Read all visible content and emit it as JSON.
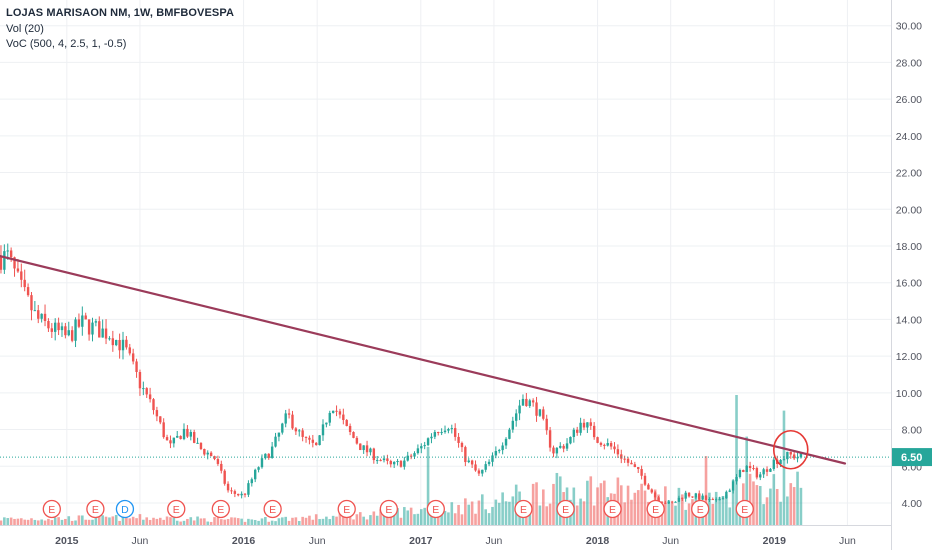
{
  "legend": {
    "symbol_line": "LOJAS MARISAON NM, 1W, BMFBOVESPA",
    "volume_line": "Vol (20)",
    "voc_line": "VoC (500, 4, 2.5, 1, -0.5)"
  },
  "colors": {
    "up": "#26a69a",
    "down": "#ef5350",
    "trendline": "#9b3b5a",
    "price_line": "#26a69a",
    "marker_earnings": "#ef5350",
    "marker_dividend": "#2196f3",
    "grid": "#eef0f3"
  },
  "last_price_label": "6.50",
  "chart_data": {
    "type": "candlestick",
    "title": "LOJAS MARISAON NM, 1W, BMFBOVESPA",
    "interval": "1W",
    "indicators": [
      "Vol (20)",
      "VoC (500, 4, 2.5, 1, -0.5)"
    ],
    "x_ticks": [
      "2015",
      "Jun",
      "2016",
      "Jun",
      "2017",
      "Jun",
      "2018",
      "Jun",
      "2019",
      "Jun"
    ],
    "y_ticks": [
      "4.00",
      "6.00",
      "8.00",
      "10.00",
      "12.00",
      "14.00",
      "16.00",
      "18.00",
      "20.00",
      "22.00",
      "24.00",
      "26.00",
      "28.00",
      "30.00"
    ],
    "ylim": [
      2.8,
      31.4
    ],
    "xlim": [
      "2014-08-16",
      "2019-08-30"
    ],
    "grid": true,
    "last_price": 6.5,
    "price_path": [
      [
        "2014-09-01",
        17.4
      ],
      [
        "2014-10-01",
        15.5
      ],
      [
        "2014-11-01",
        14.0
      ],
      [
        "2014-12-01",
        13.5
      ],
      [
        "2015-01-01",
        13.0
      ],
      [
        "2015-02-01",
        13.8
      ],
      [
        "2015-03-01",
        13.5
      ],
      [
        "2015-04-01",
        13.2
      ],
      [
        "2015-05-01",
        12.4
      ],
      [
        "2015-06-01",
        10.5
      ],
      [
        "2015-07-01",
        9.0
      ],
      [
        "2015-08-01",
        7.0
      ],
      [
        "2015-09-01",
        8.0
      ],
      [
        "2015-10-01",
        7.0
      ],
      [
        "2015-11-01",
        6.5
      ],
      [
        "2015-12-01",
        4.6
      ],
      [
        "2016-01-01",
        4.4
      ],
      [
        "2016-02-01",
        6.0
      ],
      [
        "2016-03-01",
        7.0
      ],
      [
        "2016-04-01",
        8.8
      ],
      [
        "2016-05-01",
        7.5
      ],
      [
        "2016-06-01",
        7.0
      ],
      [
        "2016-07-01",
        9.5
      ],
      [
        "2016-08-01",
        8.0
      ],
      [
        "2016-09-01",
        7.0
      ],
      [
        "2016-10-01",
        6.5
      ],
      [
        "2016-11-01",
        6.0
      ],
      [
        "2016-12-01",
        6.3
      ],
      [
        "2017-01-01",
        7.0
      ],
      [
        "2017-02-01",
        8.0
      ],
      [
        "2017-03-01",
        8.3
      ],
      [
        "2017-04-01",
        6.5
      ],
      [
        "2017-05-01",
        5.5
      ],
      [
        "2017-06-01",
        6.5
      ],
      [
        "2017-07-01",
        8.0
      ],
      [
        "2017-08-01",
        9.8
      ],
      [
        "2017-09-01",
        9.0
      ],
      [
        "2017-10-01",
        6.8
      ],
      [
        "2017-11-01",
        7.3
      ],
      [
        "2017-12-01",
        8.5
      ],
      [
        "2018-01-01",
        7.5
      ],
      [
        "2018-02-01",
        7.0
      ],
      [
        "2018-03-01",
        6.3
      ],
      [
        "2018-04-01",
        5.5
      ],
      [
        "2018-05-01",
        4.3
      ],
      [
        "2018-06-01",
        3.9
      ],
      [
        "2018-07-01",
        4.5
      ],
      [
        "2018-08-01",
        4.3
      ],
      [
        "2018-09-01",
        4.0
      ],
      [
        "2018-10-01",
        4.8
      ],
      [
        "2018-11-01",
        6.0
      ],
      [
        "2018-12-01",
        5.5
      ],
      [
        "2019-01-01",
        6.3
      ],
      [
        "2019-02-01",
        6.6
      ],
      [
        "2019-02-25",
        6.5
      ]
    ],
    "volume_profile": [
      [
        "2014-09-01",
        0.05
      ],
      [
        "2015-06-01",
        0.06
      ],
      [
        "2016-01-01",
        0.04
      ],
      [
        "2016-08-01",
        0.07
      ],
      [
        "2017-01-01",
        0.12
      ],
      [
        "2017-06-01",
        0.18
      ],
      [
        "2017-09-01",
        0.28
      ],
      [
        "2018-01-01",
        0.3
      ],
      [
        "2018-05-01",
        0.22
      ],
      [
        "2018-09-01",
        0.2
      ],
      [
        "2018-11-01",
        0.32
      ],
      [
        "2019-02-25",
        0.3
      ]
    ],
    "volume_scale_note": "relative to the volume pane height",
    "volume_spikes": [
      [
        "2017-01-16",
        0.6
      ],
      [
        "2018-08-13",
        0.53
      ],
      [
        "2018-10-15",
        1.0
      ],
      [
        "2018-11-05",
        0.68
      ],
      [
        "2019-01-21",
        0.88
      ]
    ],
    "trendline": {
      "from": [
        "2014-08-16",
        17.45
      ],
      "to": [
        "2019-05-27",
        6.15
      ]
    },
    "highlight_circle": {
      "center": [
        "2019-02-04",
        6.9
      ],
      "note": "breakout circle"
    },
    "event_markers": [
      {
        "date": "2014-12-01",
        "label": "E",
        "kind": "earnings"
      },
      {
        "date": "2015-03-01",
        "label": "E",
        "kind": "earnings"
      },
      {
        "date": "2015-05-01",
        "label": "D",
        "kind": "dividend"
      },
      {
        "date": "2015-08-15",
        "label": "E",
        "kind": "earnings"
      },
      {
        "date": "2015-11-15",
        "label": "E",
        "kind": "earnings"
      },
      {
        "date": "2016-03-01",
        "label": "E",
        "kind": "earnings"
      },
      {
        "date": "2016-08-01",
        "label": "E",
        "kind": "earnings"
      },
      {
        "date": "2016-10-27",
        "label": "E",
        "kind": "earnings"
      },
      {
        "date": "2017-02-01",
        "label": "E",
        "kind": "earnings"
      },
      {
        "date": "2017-08-01",
        "label": "E",
        "kind": "earnings"
      },
      {
        "date": "2017-10-27",
        "label": "E",
        "kind": "earnings"
      },
      {
        "date": "2018-02-01",
        "label": "E",
        "kind": "earnings"
      },
      {
        "date": "2018-05-01",
        "label": "E",
        "kind": "earnings"
      },
      {
        "date": "2018-08-01",
        "label": "E",
        "kind": "earnings"
      },
      {
        "date": "2018-11-01",
        "label": "E",
        "kind": "earnings"
      }
    ]
  }
}
